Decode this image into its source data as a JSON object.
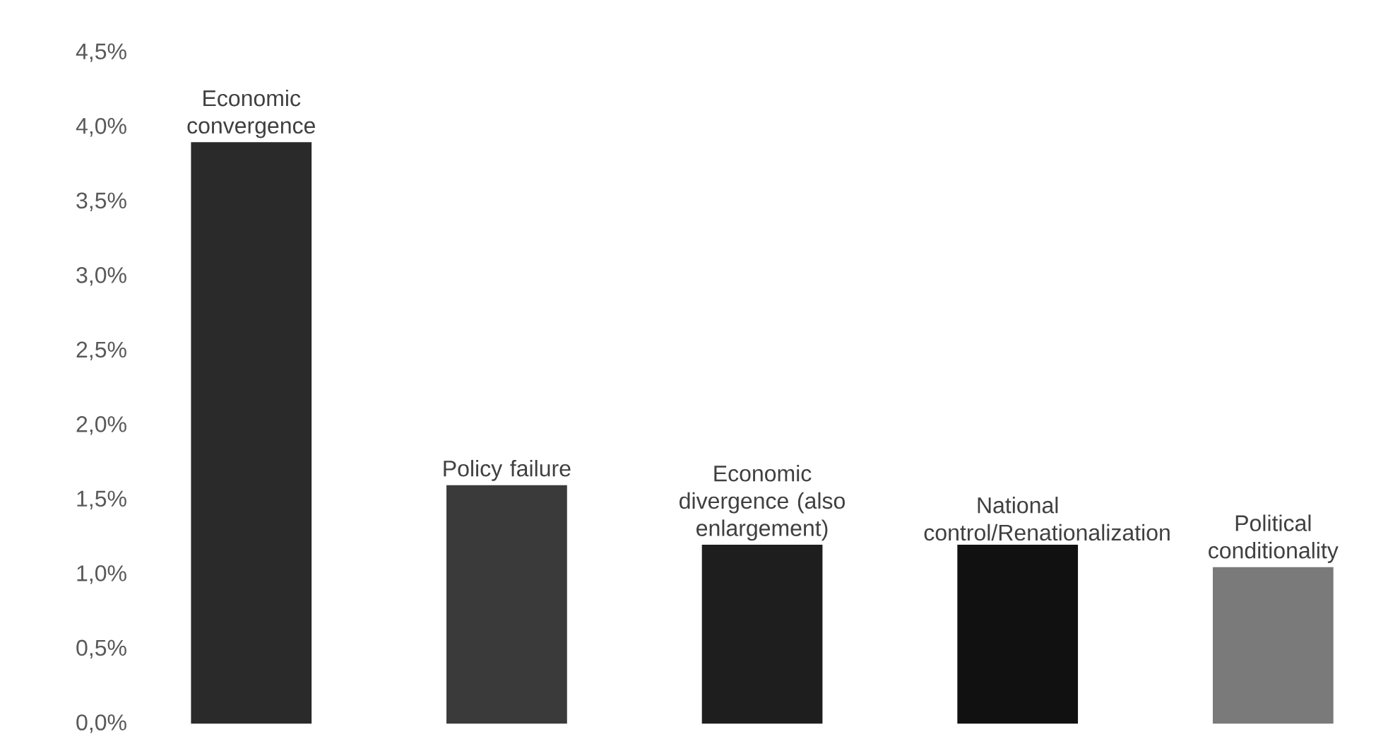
{
  "chart_data": {
    "type": "bar",
    "categories": [
      "Economic convergence",
      "Policy failure",
      "Economic divergence (also enlargement)",
      "National control/Renationalization",
      "Political conditionality"
    ],
    "values": [
      3.9,
      1.6,
      1.2,
      1.2,
      1.05
    ],
    "colors": [
      "#2a2a2a",
      "#3a3a3a",
      "#1e1e1e",
      "#111111",
      "#7a7a7a"
    ],
    "ylim": [
      0,
      4.5
    ],
    "yticks": [
      {
        "value": 0,
        "label": "0,0%"
      },
      {
        "value": 0.5,
        "label": "0,5%"
      },
      {
        "value": 1,
        "label": "1,0%"
      },
      {
        "value": 1.5,
        "label": "1,5%"
      },
      {
        "value": 2,
        "label": "2,0%"
      },
      {
        "value": 2.5,
        "label": "2,5%"
      },
      {
        "value": 3,
        "label": "3,0%"
      },
      {
        "value": 3.5,
        "label": "3,5%"
      },
      {
        "value": 4,
        "label": "4,0%"
      },
      {
        "value": 4.5,
        "label": "4,5%"
      }
    ]
  }
}
